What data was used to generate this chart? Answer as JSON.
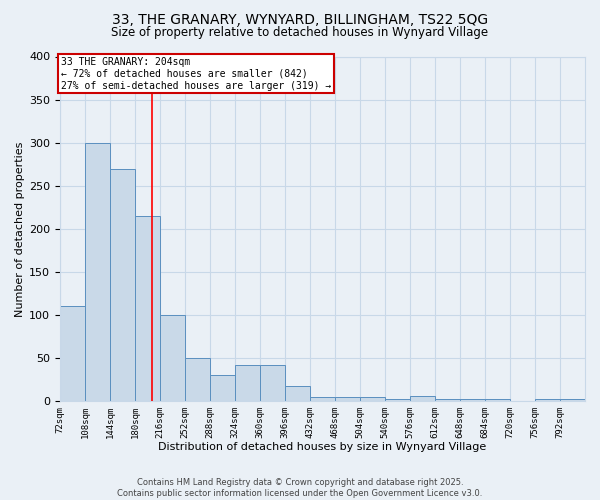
{
  "title1": "33, THE GRANARY, WYNYARD, BILLINGHAM, TS22 5QG",
  "title2": "Size of property relative to detached houses in Wynyard Village",
  "xlabel": "Distribution of detached houses by size in Wynyard Village",
  "ylabel": "Number of detached properties",
  "bin_starts": [
    72,
    108,
    144,
    180,
    216,
    252,
    288,
    324,
    360,
    396,
    432,
    468,
    504,
    540,
    576,
    612,
    648,
    684,
    720,
    756,
    792
  ],
  "bar_heights": [
    110,
    300,
    270,
    215,
    100,
    50,
    30,
    42,
    42,
    18,
    5,
    5,
    5,
    2,
    6,
    2,
    3,
    3,
    0,
    2,
    3
  ],
  "bin_width": 36,
  "bar_color": "#c9d9e8",
  "bar_edge_color": "#5a8fbf",
  "grid_color": "#c8d8e8",
  "background_color": "#eaf0f6",
  "red_line_x": 204,
  "annotation_text": "33 THE GRANARY: 204sqm\n← 72% of detached houses are smaller (842)\n27% of semi-detached houses are larger (319) →",
  "annotation_box_color": "#ffffff",
  "annotation_box_edge_color": "#cc0000",
  "footer_text": "Contains HM Land Registry data © Crown copyright and database right 2025.\nContains public sector information licensed under the Open Government Licence v3.0.",
  "ylim": [
    0,
    400
  ],
  "yticks": [
    0,
    50,
    100,
    150,
    200,
    250,
    300,
    350,
    400
  ]
}
